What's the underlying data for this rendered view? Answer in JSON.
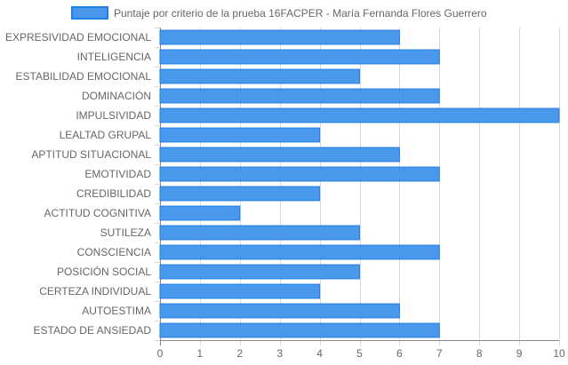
{
  "chart_data": {
    "type": "bar",
    "orientation": "horizontal",
    "legend": "top-center",
    "grid": true,
    "xlim": [
      0,
      10
    ],
    "x_ticks": [
      "0",
      "1",
      "2",
      "3",
      "4",
      "5",
      "6",
      "7",
      "8",
      "9",
      "10"
    ],
    "categories": [
      "EXPRESIVIDAD EMOCIONAL",
      "INTELIGENCIA",
      "ESTABILIDAD EMOCIONAL",
      "DOMINACIÓN",
      "IMPULSIVIDAD",
      "LEALTAD GRUPAL",
      "APTITUD SITUACIONAL",
      "EMOTIVIDAD",
      "CREDIBILIDAD",
      "ACTITUD COGNITIVA",
      "SUTILEZA",
      "CONSCIENCIA",
      "POSICIÓN SOCIAL",
      "CERTEZA INDIVIDUAL",
      "AUTOESTIMA",
      "ESTADO DE ANSIEDAD"
    ],
    "series": [
      {
        "name": "Puntaje por criterio de la prueba 16FACPER - María Fernanda Flores Guerrero",
        "color": "#4a98ec",
        "border_color": "#1e7fe0",
        "values": [
          6,
          7,
          5,
          7,
          10,
          4,
          6,
          7,
          4,
          2,
          5,
          7,
          5,
          4,
          6,
          7
        ]
      }
    ],
    "grid_color": "#d9d9d9",
    "axis_color": "#888888"
  }
}
